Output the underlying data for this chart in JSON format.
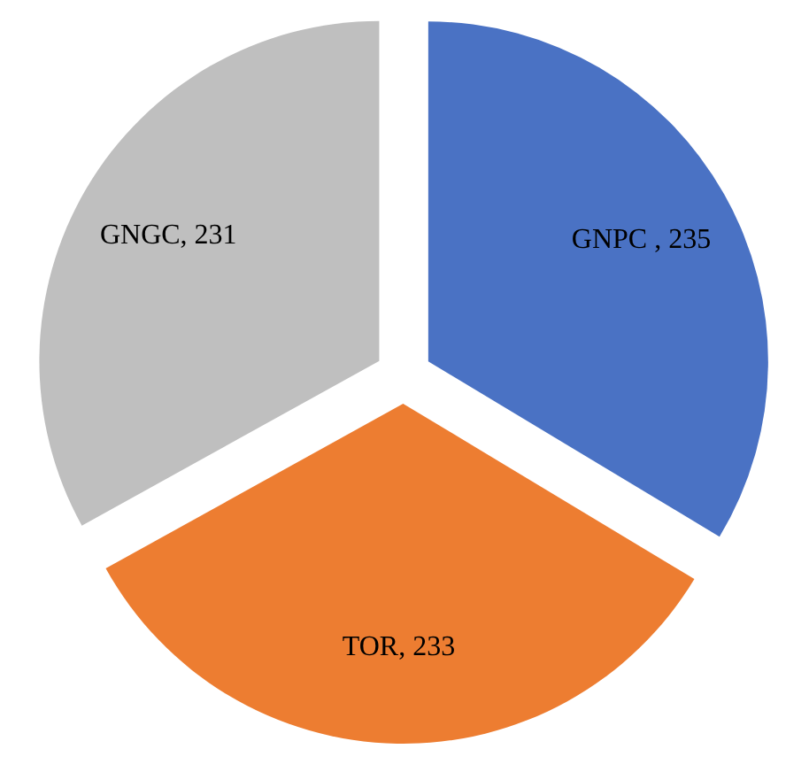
{
  "chart_data": {
    "type": "pie",
    "categories": [
      "GNPC ",
      "TOR",
      "GNGC"
    ],
    "values": [
      235,
      233,
      231
    ],
    "value_labels": [
      ", 235",
      ", 233",
      ", 231"
    ],
    "colors": [
      "#4a72c4",
      "#ed7d31",
      "#bfbfbf"
    ],
    "legend": false
  }
}
